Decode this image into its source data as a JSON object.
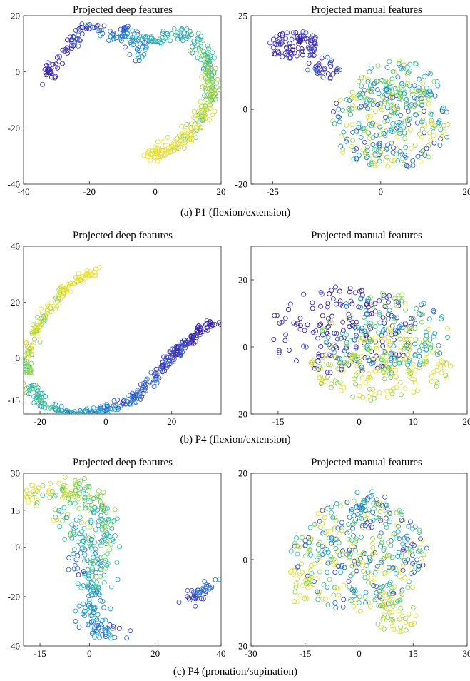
{
  "palette": [
    "#3b1f9e",
    "#3f3fbf",
    "#2f6fd0",
    "#1fa3c8",
    "#3cc09a",
    "#8bd35a",
    "#d4dc3a",
    "#f2e23a"
  ],
  "captions": [
    "(a) P1 (flexion/extension)",
    "(b) P4 (flexion/extension)",
    "(c) P4 (pronation/supination)"
  ],
  "chart_data": [
    {
      "type": "scatter",
      "title": "Projected deep features",
      "xlim": [
        -40,
        20
      ],
      "ylim": [
        -40,
        20
      ],
      "xticks": [
        -40,
        -20,
        0,
        20
      ],
      "yticks": [
        -40,
        -20,
        0,
        20
      ],
      "marker": "open-circle",
      "paths": [
        {
          "pts": [
            [
              -33,
              -2
            ],
            [
              -32,
              1
            ],
            [
              -29,
              5
            ],
            [
              -26,
              10
            ],
            [
              -22,
              15
            ],
            [
              -20,
              17
            ],
            [
              -15,
              14
            ],
            [
              -12,
              12
            ],
            [
              -9,
              16
            ],
            [
              -7,
              15
            ],
            [
              -6,
              6
            ],
            [
              -5,
              6
            ],
            [
              -4,
              10
            ],
            [
              -1,
              12
            ],
            [
              2,
              11
            ],
            [
              5,
              13
            ],
            [
              8,
              13
            ],
            [
              10,
              12
            ],
            [
              13,
              8
            ],
            [
              16,
              4
            ],
            [
              17,
              -4
            ],
            [
              17,
              -10
            ],
            [
              15,
              -16
            ],
            [
              12,
              -20
            ],
            [
              9,
              -24
            ],
            [
              5,
              -27
            ],
            [
              1,
              -29
            ],
            [
              -3,
              -30
            ]
          ],
          "count": 330,
          "spread": 1.1,
          "cstart": 0,
          "cend": 7
        },
        {
          "pts": [
            [
              3,
              12
            ],
            [
              9,
              14
            ],
            [
              14,
              10
            ],
            [
              17,
              3
            ],
            [
              16,
              -8
            ],
            [
              12,
              -20
            ],
            [
              6,
              -26
            ],
            [
              -2,
              -30
            ]
          ],
          "count": 120,
          "spread": 1.5,
          "cstart": 3,
          "cend": 7
        }
      ]
    },
    {
      "type": "scatter",
      "title": "Projected manual features",
      "xlim": [
        -30,
        20
      ],
      "ylim": [
        -20,
        25
      ],
      "xticks": [
        -25,
        0,
        20
      ],
      "yticks": [
        -20,
        0,
        25
      ],
      "marker": "open-circle",
      "blobs": [
        {
          "cx": -20,
          "cy": 17,
          "rx": 6,
          "ry": 4,
          "count": 90,
          "c": [
            0,
            1
          ]
        },
        {
          "cx": -13,
          "cy": 11,
          "rx": 4,
          "ry": 3,
          "count": 30,
          "c": [
            0,
            2
          ]
        },
        {
          "cx": 2,
          "cy": -4,
          "rx": 14,
          "ry": 12,
          "count": 280,
          "c": [
            1,
            7
          ]
        },
        {
          "cx": 4,
          "cy": 6,
          "rx": 10,
          "ry": 7,
          "count": 100,
          "c": [
            2,
            6
          ]
        }
      ]
    },
    {
      "type": "scatter",
      "title": "Projected deep features",
      "xlim": [
        -25,
        35
      ],
      "ylim": [
        -20,
        40
      ],
      "xticks": [
        -20,
        0,
        20
      ],
      "yticks": [
        -15,
        0,
        20,
        40
      ],
      "marker": "open-circle",
      "paths": [
        {
          "pts": [
            [
              -3,
              31
            ],
            [
              -7,
              29
            ],
            [
              -12,
              25
            ],
            [
              -16,
              19
            ],
            [
              -20,
              13
            ],
            [
              -22,
              8
            ],
            [
              -23,
              3
            ],
            [
              -24,
              0
            ],
            [
              -24,
              -3
            ],
            [
              -23,
              -6
            ]
          ],
          "count": 170,
          "spread": 0.8,
          "cstart": 7,
          "cend": 5
        },
        {
          "pts": [
            [
              -23,
              -10
            ],
            [
              -21,
              -14
            ],
            [
              -18,
              -17
            ],
            [
              -14,
              -19
            ],
            [
              -8,
              -20
            ],
            [
              -2,
              -19
            ],
            [
              4,
              -17
            ],
            [
              9,
              -14
            ],
            [
              13,
              -9
            ],
            [
              16,
              -5
            ],
            [
              19,
              -1
            ],
            [
              23,
              4
            ],
            [
              27,
              8
            ],
            [
              30,
              11
            ],
            [
              33,
              13
            ]
          ],
          "count": 330,
          "spread": 0.9,
          "cstart": 4,
          "cend": 0
        }
      ]
    },
    {
      "type": "scatter",
      "title": "Projected manual features",
      "xlim": [
        -20,
        20
      ],
      "ylim": [
        -20,
        30
      ],
      "xticks": [
        -15,
        0,
        10,
        20
      ],
      "yticks": [
        -20,
        0,
        20
      ],
      "marker": "open-circle",
      "blobs": [
        {
          "cx": -3,
          "cy": 5,
          "rx": 14,
          "ry": 13,
          "count": 180,
          "c": [
            0,
            1
          ]
        },
        {
          "cx": 4,
          "cy": -6,
          "rx": 13,
          "ry": 10,
          "count": 170,
          "c": [
            5,
            7
          ]
        },
        {
          "cx": 5,
          "cy": 4,
          "rx": 12,
          "ry": 12,
          "count": 170,
          "c": [
            2,
            6
          ]
        }
      ]
    },
    {
      "type": "scatter",
      "title": "Projected deep features",
      "xlim": [
        -20,
        40
      ],
      "ylim": [
        -40,
        30
      ],
      "xticks": [
        -15,
        0,
        20,
        40
      ],
      "yticks": [
        -40,
        -20,
        0,
        15,
        30
      ],
      "marker": "open-circle",
      "paths": [
        {
          "pts": [
            [
              -20,
              22
            ],
            [
              -15,
              22
            ],
            [
              -12,
              24
            ],
            [
              -9,
              20
            ],
            [
              -5,
              22
            ],
            [
              -2,
              24
            ],
            [
              0,
              22
            ],
            [
              2,
              18
            ],
            [
              4,
              10
            ],
            [
              4,
              2
            ],
            [
              3,
              -6
            ],
            [
              1,
              -14
            ],
            [
              0,
              -22
            ],
            [
              0,
              -28
            ],
            [
              2,
              -33
            ],
            [
              6,
              -34
            ],
            [
              10,
              -33
            ]
          ],
          "count": 300,
          "spread": 2.3,
          "cstart": 6,
          "cend": 2
        },
        {
          "pts": [
            [
              -12,
              16
            ],
            [
              -8,
              13
            ],
            [
              -4,
              8
            ],
            [
              -2,
              0
            ],
            [
              -1,
              -10
            ]
          ],
          "count": 60,
          "spread": 2.2,
          "cstart": 5,
          "cend": 2
        },
        {
          "pts": [
            [
              29,
              -21
            ],
            [
              32,
              -20
            ],
            [
              35,
              -18
            ],
            [
              37,
              -15
            ]
          ],
          "count": 40,
          "spread": 1.2,
          "cstart": 1,
          "cend": 2
        }
      ]
    },
    {
      "type": "scatter",
      "title": "Projected manual features",
      "xlim": [
        -30,
        30
      ],
      "ylim": [
        -20,
        20
      ],
      "xticks": [
        -30,
        -15,
        0,
        15,
        30
      ],
      "yticks": [
        -20,
        0,
        20
      ],
      "marker": "open-circle",
      "blobs": [
        {
          "cx": 0,
          "cy": 1,
          "rx": 19,
          "ry": 13,
          "count": 380,
          "c": [
            1,
            7
          ]
        },
        {
          "cx": 2,
          "cy": 12,
          "rx": 6,
          "ry": 5,
          "count": 40,
          "c": [
            1,
            4
          ]
        },
        {
          "cx": 10,
          "cy": -13,
          "rx": 6,
          "ry": 4,
          "count": 40,
          "c": [
            5,
            7
          ]
        },
        {
          "cx": -17,
          "cy": -6,
          "rx": 4,
          "ry": 4,
          "count": 20,
          "c": [
            5,
            7
          ]
        }
      ]
    }
  ]
}
